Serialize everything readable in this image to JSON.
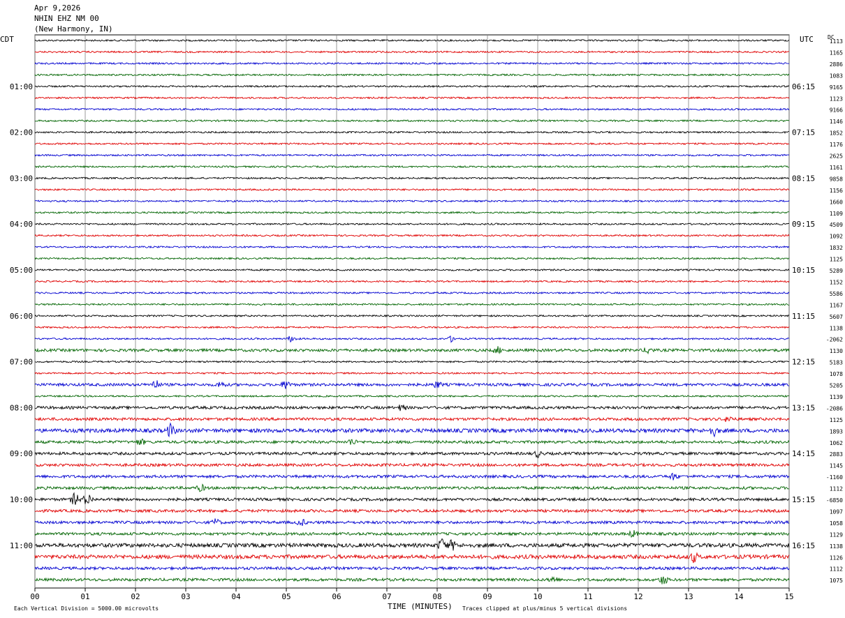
{
  "header": {
    "date": "Apr 9,2026",
    "station": "NHIN EHZ NM 00",
    "location": "(New Harmony, IN)"
  },
  "left_tz": "CDT",
  "right_tz": "UTC",
  "dc_label": "DC",
  "footer": {
    "left_note": "Each Vertical Division = 5000.00 microvolts",
    "xlabel": "TIME (MINUTES)",
    "right_note": "Traces clipped at plus/minus 5 vertical divisions"
  },
  "colors": {
    "black": "#000000",
    "red": "#e00000",
    "blue": "#0000d0",
    "green": "#006400",
    "grid": "#808080"
  },
  "chart_data": {
    "type": "line",
    "title": "NHIN EHZ NM 00",
    "xlabel": "TIME (MINUTES)",
    "xlim": [
      0,
      15
    ],
    "x_ticks": [
      "00",
      "01",
      "02",
      "03",
      "04",
      "05",
      "06",
      "07",
      "08",
      "09",
      "10",
      "11",
      "12",
      "13",
      "14",
      "15"
    ],
    "trace_colors": [
      "black",
      "red",
      "blue",
      "green"
    ],
    "left_hour_labels": [
      "01:00",
      "02:00",
      "03:00",
      "04:00",
      "05:00",
      "06:00",
      "07:00",
      "08:00",
      "09:00",
      "10:00",
      "11:00"
    ],
    "right_hour_labels": [
      "06:15",
      "07:15",
      "08:15",
      "09:15",
      "10:15",
      "11:15",
      "12:15",
      "13:15",
      "14:15",
      "15:15",
      "16:15"
    ],
    "dc_offsets": [
      "1113",
      "1165",
      "2886",
      "1083",
      "9165",
      "1123",
      "9166",
      "1146",
      "1852",
      "1176",
      "2625",
      "1161",
      "9858",
      "1156",
      "1660",
      "1109",
      "4509",
      "1092",
      "1832",
      "1125",
      "5289",
      "1152",
      "5586",
      "1167",
      "5607",
      "1138",
      "-2062",
      "1130",
      "5183",
      "1078",
      "5205",
      "1139",
      "-2086",
      "1125",
      "1893",
      "1062",
      "2883",
      "1145",
      "-1160",
      "1112",
      "-6850",
      "1097",
      "1058",
      "1129",
      "1138",
      "1126",
      "1112",
      "1075"
    ],
    "amplitude_level": [
      1,
      1,
      1,
      1,
      1,
      1,
      1,
      1,
      1,
      1,
      1,
      1,
      1,
      1,
      1,
      1,
      1,
      1,
      1,
      1,
      1,
      1,
      1,
      1,
      1,
      1,
      1,
      2,
      1,
      1,
      2,
      1,
      2,
      2,
      3,
      2,
      2,
      2,
      2,
      2,
      2,
      2,
      2,
      2,
      3,
      3,
      2,
      2
    ],
    "bursts": [
      {
        "trace": 26,
        "minute": 5.1,
        "size": 2
      },
      {
        "trace": 26,
        "minute": 8.3,
        "size": 2
      },
      {
        "trace": 27,
        "minute": 9.2,
        "size": 2
      },
      {
        "trace": 27,
        "minute": 12.2,
        "size": 2
      },
      {
        "trace": 30,
        "minute": 2.4,
        "size": 3
      },
      {
        "trace": 30,
        "minute": 3.7,
        "size": 2
      },
      {
        "trace": 30,
        "minute": 5.0,
        "size": 3
      },
      {
        "trace": 30,
        "minute": 8.0,
        "size": 2
      },
      {
        "trace": 32,
        "minute": 7.3,
        "size": 2
      },
      {
        "trace": 34,
        "minute": 2.7,
        "size": 4
      },
      {
        "trace": 34,
        "minute": 13.5,
        "size": 3
      },
      {
        "trace": 33,
        "minute": 13.8,
        "size": 2
      },
      {
        "trace": 35,
        "minute": 2.1,
        "size": 2
      },
      {
        "trace": 35,
        "minute": 6.3,
        "size": 2
      },
      {
        "trace": 36,
        "minute": 10.0,
        "size": 2
      },
      {
        "trace": 38,
        "minute": 12.7,
        "size": 2
      },
      {
        "trace": 39,
        "minute": 3.3,
        "size": 2
      },
      {
        "trace": 40,
        "minute": 0.8,
        "size": 4
      },
      {
        "trace": 40,
        "minute": 1.05,
        "size": 4
      },
      {
        "trace": 42,
        "minute": 3.6,
        "size": 2
      },
      {
        "trace": 42,
        "minute": 5.3,
        "size": 2
      },
      {
        "trace": 43,
        "minute": 11.9,
        "size": 2
      },
      {
        "trace": 44,
        "minute": 8.1,
        "size": 4
      },
      {
        "trace": 44,
        "minute": 8.3,
        "size": 3
      },
      {
        "trace": 45,
        "minute": 13.1,
        "size": 3
      },
      {
        "trace": 47,
        "minute": 10.3,
        "size": 2
      },
      {
        "trace": 47,
        "minute": 12.5,
        "size": 3
      }
    ]
  }
}
